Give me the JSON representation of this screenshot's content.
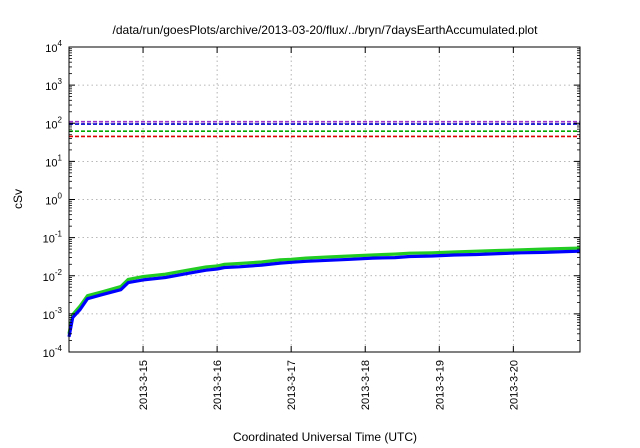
{
  "chart_data": {
    "type": "line",
    "title": "/data/run/goesPlots/archive/2013-03-20/flux/../bryn/7daysEarthAccumulated.plot",
    "xlabel": "Coordinated Universal Time (UTC)",
    "ylabel": "cSv",
    "yscale": "log",
    "ylim": [
      0.0001,
      10000
    ],
    "xlim": [
      0,
      6.9
    ],
    "x_ticks": [
      {
        "x": 1,
        "label": "2013-3-15"
      },
      {
        "x": 2,
        "label": "2013-3-16"
      },
      {
        "x": 3,
        "label": "2013-3-17"
      },
      {
        "x": 4,
        "label": "2013-3-18"
      },
      {
        "x": 5,
        "label": "2013-3-19"
      },
      {
        "x": 6,
        "label": "2013-3-20"
      }
    ],
    "y_ticks": [
      {
        "value": 0.0001,
        "base": "10",
        "exp": "-4"
      },
      {
        "value": 0.001,
        "base": "10",
        "exp": "-3"
      },
      {
        "value": 0.01,
        "base": "10",
        "exp": "-2"
      },
      {
        "value": 0.1,
        "base": "10",
        "exp": "-1"
      },
      {
        "value": 1,
        "base": "10",
        "exp": "0"
      },
      {
        "value": 10,
        "base": "10",
        "exp": "1"
      },
      {
        "value": 100,
        "base": "10",
        "exp": "2"
      },
      {
        "value": 1000,
        "base": "10",
        "exp": "3"
      },
      {
        "value": 10000,
        "base": "10",
        "exp": "4"
      }
    ],
    "grid": true,
    "legend": "none",
    "thresholds": [
      {
        "value": 110,
        "color": "#9933cc"
      },
      {
        "value": 95,
        "color": "#0000cc"
      },
      {
        "value": 62,
        "color": "#00aa00"
      },
      {
        "value": 45,
        "color": "#dd0000"
      }
    ],
    "series": [
      {
        "color": "#22cc22",
        "x": [
          0,
          0.05,
          0.15,
          0.25,
          0.45,
          0.7,
          0.8,
          1.0,
          1.3,
          1.6,
          1.85,
          2.0,
          2.1,
          2.3,
          2.6,
          2.85,
          3.0,
          3.2,
          3.5,
          3.8,
          4.1,
          4.4,
          4.6,
          4.9,
          5.2,
          5.5,
          5.8,
          6.1,
          6.4,
          6.7,
          6.9
        ],
        "y": [
          0.0003,
          0.00095,
          0.0016,
          0.003,
          0.0038,
          0.0052,
          0.008,
          0.0095,
          0.011,
          0.014,
          0.017,
          0.018,
          0.02,
          0.021,
          0.023,
          0.026,
          0.027,
          0.029,
          0.031,
          0.033,
          0.035,
          0.037,
          0.039,
          0.04,
          0.042,
          0.044,
          0.046,
          0.048,
          0.05,
          0.052,
          0.053
        ]
      },
      {
        "color": "#0000ff",
        "x": [
          0,
          0.05,
          0.15,
          0.25,
          0.45,
          0.7,
          0.8,
          1.0,
          1.3,
          1.6,
          1.85,
          2.0,
          2.1,
          2.3,
          2.6,
          2.85,
          3.0,
          3.2,
          3.5,
          3.8,
          4.1,
          4.4,
          4.6,
          4.9,
          5.2,
          5.5,
          5.8,
          6.1,
          6.4,
          6.7,
          6.9
        ],
        "y": [
          0.00025,
          0.0008,
          0.0013,
          0.0025,
          0.0032,
          0.0043,
          0.0066,
          0.0078,
          0.009,
          0.0115,
          0.014,
          0.015,
          0.0165,
          0.0172,
          0.019,
          0.0215,
          0.0225,
          0.024,
          0.0255,
          0.027,
          0.029,
          0.03,
          0.032,
          0.033,
          0.035,
          0.036,
          0.038,
          0.04,
          0.041,
          0.043,
          0.044
        ]
      }
    ]
  }
}
